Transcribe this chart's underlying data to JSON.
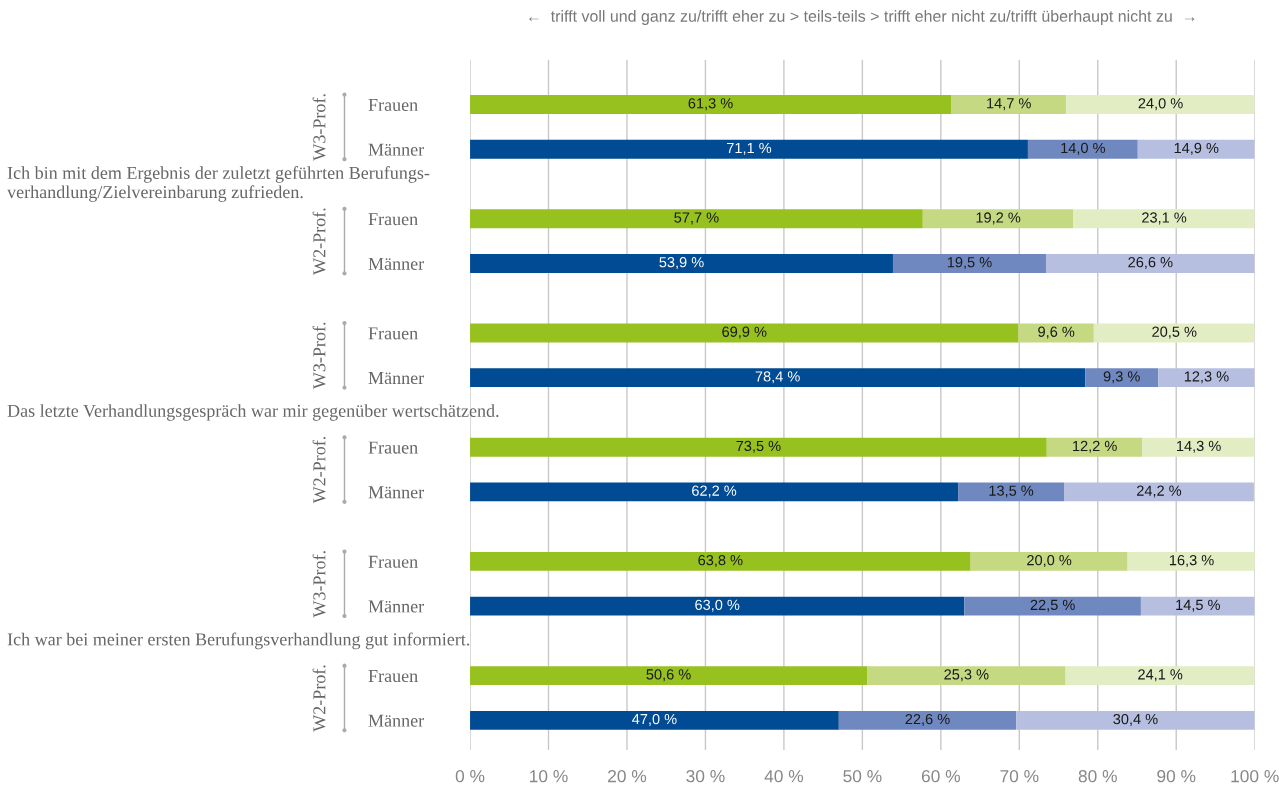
{
  "chart_data": {
    "type": "bar",
    "orientation": "horizontal",
    "stacked": true,
    "categories": [
      "Frauen",
      "Männer",
      "Frauen",
      "Männer",
      "Frauen",
      "Männer",
      "Frauen",
      "Männer",
      "Frauen",
      "Männer",
      "Frauen",
      "Männer"
    ],
    "series": [
      {
        "colors": [
          "#97c11f",
          "#004b93",
          "#97c11f",
          "#004b93",
          "#97c11f",
          "#004b93",
          "#97c11f",
          "#004b93",
          "#97c11f",
          "#004b93",
          "#97c11f",
          "#004b93"
        ],
        "values": [
          61.3,
          71.1,
          57.7,
          53.9,
          69.9,
          78.4,
          73.5,
          62.2,
          63.8,
          63.0,
          50.6,
          47.0
        ],
        "value_labels": [
          "61,3 %",
          "71,1 %",
          "57,7 %",
          "53,9 %",
          "69,9 %",
          "78,4 %",
          "73,5 %",
          "62,2 %",
          "63,8 %",
          "63,0 %",
          "50,6 %",
          "47,0 %"
        ]
      },
      {
        "colors": [
          "#c5d982",
          "#7088c0",
          "#c5d982",
          "#7088c0",
          "#c5d982",
          "#7088c0",
          "#c5d982",
          "#7088c0",
          "#c5d982",
          "#7088c0",
          "#c5d982",
          "#7088c0"
        ],
        "values": [
          14.7,
          14.0,
          19.2,
          19.5,
          9.6,
          9.3,
          12.2,
          13.5,
          20.0,
          22.5,
          25.3,
          22.6
        ],
        "value_labels": [
          "14,7 %",
          "14,0 %",
          "19,2 %",
          "19,5 %",
          "9,6 %",
          "9,3 %",
          "12,2 %",
          "13,5 %",
          "20,0 %",
          "22,5 %",
          "25,3 %",
          "22,6 %"
        ]
      },
      {
        "colors": [
          "#e3edc4",
          "#b6bfe0",
          "#e3edc4",
          "#b6bfe0",
          "#e3edc4",
          "#b6bfe0",
          "#e3edc4",
          "#b6bfe0",
          "#e3edc4",
          "#b6bfe0",
          "#e3edc4",
          "#b6bfe0"
        ],
        "values": [
          24.0,
          14.9,
          23.1,
          26.6,
          20.5,
          12.3,
          14.3,
          24.2,
          16.3,
          14.5,
          24.1,
          30.4
        ],
        "value_labels": [
          "24,0 %",
          "14,9 %",
          "23,1 %",
          "26,6 %",
          "20,5 %",
          "12,3 %",
          "14,3 %",
          "24,2 %",
          "16,3 %",
          "14,5 %",
          "24,1 %",
          "30,4 %"
        ]
      }
    ],
    "xlim": [
      0,
      100
    ],
    "xticks": [
      {
        "value": 0,
        "label": "0 %"
      },
      {
        "value": 10,
        "label": "10 %"
      },
      {
        "value": 20,
        "label": "20 %"
      },
      {
        "value": 30,
        "label": "30 %"
      },
      {
        "value": 40,
        "label": "40 %"
      },
      {
        "value": 50,
        "label": "50 %"
      },
      {
        "value": 60,
        "label": "60 %"
      },
      {
        "value": 70,
        "label": "70 %"
      },
      {
        "value": 80,
        "label": "80 %"
      },
      {
        "value": 90,
        "label": "90 %"
      },
      {
        "value": 100,
        "label": "100 %"
      }
    ],
    "grid": "x",
    "annotations": [
      "←  trifft voll und ganz zu/trifft eher zu > teils-teils > trifft eher nicht zu/trifft überhaupt nicht zu  →",
      "Ich bin mit dem Ergebnis der zuletzt geführten Berufungs-\nverhandlung/Zielvereinbarung zufrieden.",
      "Das letzte Verhandlungsgespräch war mir gegenüber wertschätzend.",
      "Ich war bei meiner ersten Berufungsverhandlung gut informiert.",
      "W3-Prof.",
      "W2-Prof.",
      "W3-Prof.",
      "W2-Prof.",
      "W3-Prof.",
      "W2-Prof."
    ]
  }
}
